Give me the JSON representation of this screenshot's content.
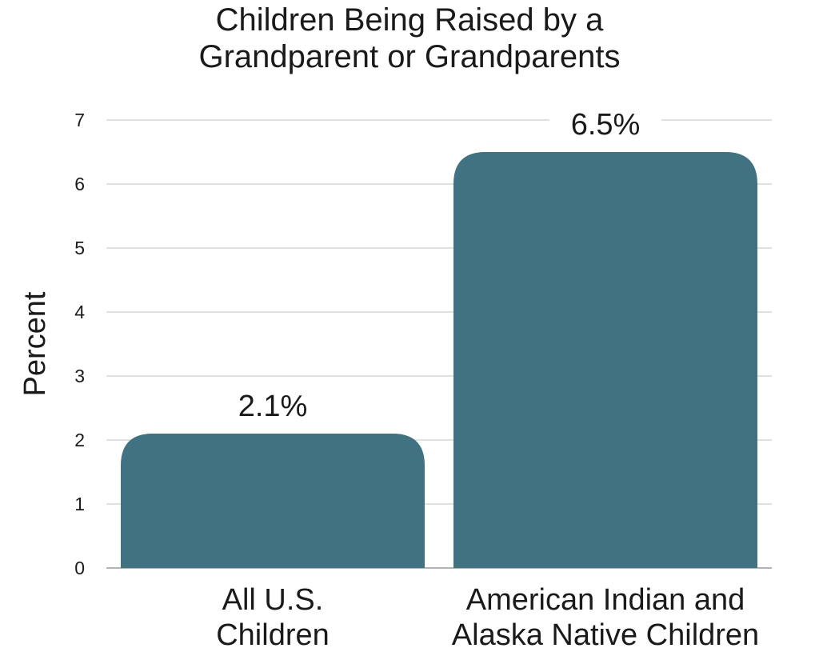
{
  "chart_data": {
    "type": "bar",
    "title": [
      "Children Being Raised by a",
      "Grandparent or Grandparents"
    ],
    "ylabel": "Percent",
    "xlabel": "",
    "ylim": [
      0,
      7
    ],
    "yticks": [
      0,
      1,
      2,
      3,
      4,
      5,
      6,
      7
    ],
    "ytick_labels": [
      "0",
      "1",
      "2",
      "3",
      "4",
      "5",
      "6",
      "7"
    ],
    "categories": [
      [
        "All U.S.",
        "Children"
      ],
      [
        "American Indian and",
        "Alaska Native Children"
      ]
    ],
    "values": [
      2.1,
      6.5
    ],
    "data_labels": [
      "2.1%",
      "6.5%"
    ],
    "grid": true,
    "legend": "none",
    "colors": {
      "bar": "#417282"
    }
  }
}
